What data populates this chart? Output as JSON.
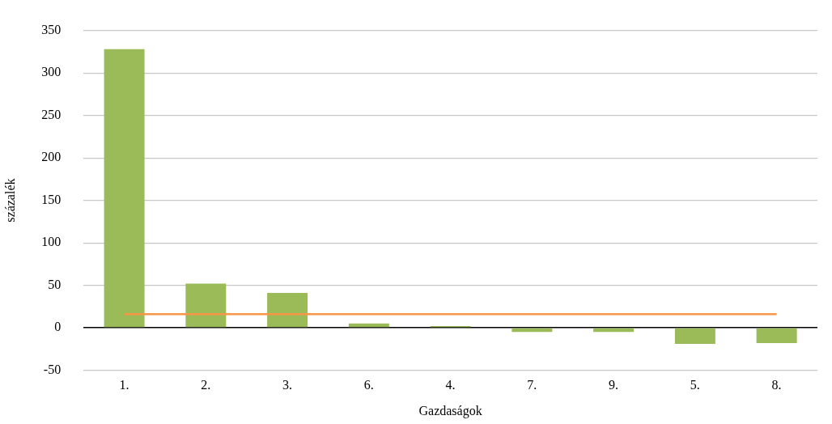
{
  "chart_data": {
    "type": "bar",
    "xlabel": "Gazdaságok",
    "ylabel": "százalék",
    "categories": [
      "1.",
      "2.",
      "3.",
      "6.",
      "4.",
      "7.",
      "9.",
      "5.",
      "8."
    ],
    "series": [
      {
        "color": "#9bbb59",
        "values": [
          328,
          52,
          41,
          5,
          2,
          -5,
          -5,
          -19,
          -18
        ]
      },
      {
        "type": "line",
        "color": "#f79646",
        "values": [
          16,
          16,
          16,
          16,
          16,
          16,
          16,
          16,
          16
        ],
        "marker": "none"
      }
    ],
    "ylim": [
      -50,
      350
    ],
    "yticks": [
      -50,
      0,
      50,
      100,
      150,
      200,
      250,
      300,
      350
    ],
    "grid": "y",
    "legend": false
  }
}
